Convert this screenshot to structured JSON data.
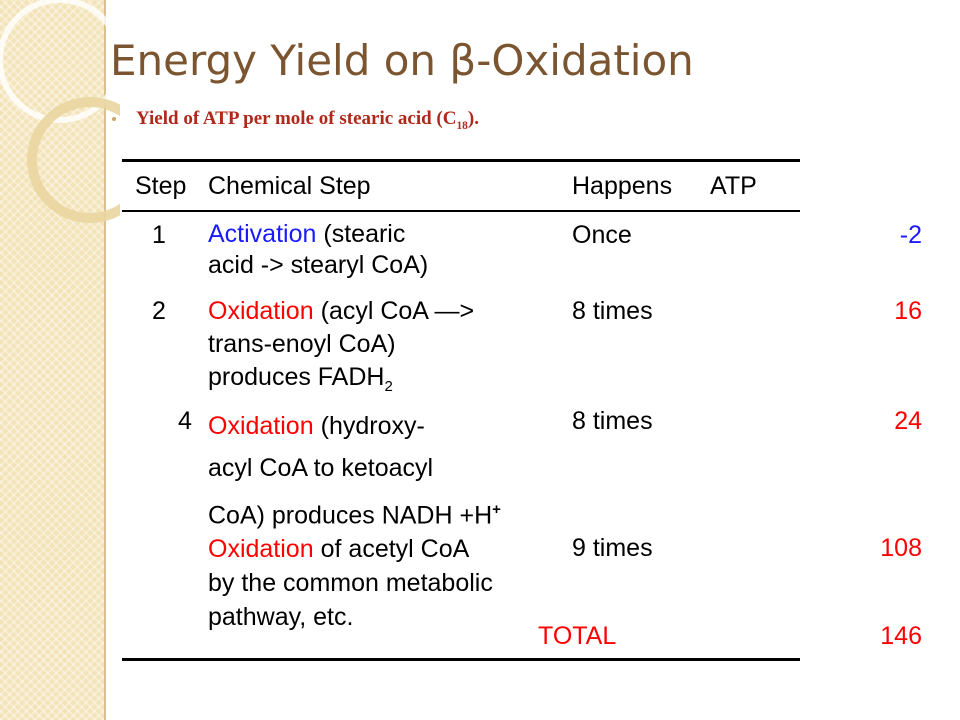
{
  "header": {
    "title": "Energy Yield on β-Oxidation",
    "subtitle": {
      "text": "Yield of ATP per mole of stearic acid (C",
      "subscript": "18",
      "end": ")."
    }
  },
  "table": {
    "columns": [
      "Step",
      "Chemical Step",
      "Happens",
      "ATP"
    ],
    "rows": [
      {
        "step": "1",
        "keyword": "Activation",
        "keyword_color": "#1a1aff",
        "lines": [
          "(stearic",
          "acid -> stearyl CoA)"
        ],
        "happens": "Once",
        "atp": -2,
        "atp_color": "#1a1aff"
      },
      {
        "step": "2",
        "keyword": "Oxidation",
        "keyword_color": "#ff0000",
        "lines": [
          "(acyl CoA —>",
          "trans-enoyl CoA)",
          "produces FADH"
        ],
        "subscript": "2",
        "happens": "8 times",
        "atp": 16,
        "atp_color": "#ff0000"
      },
      {
        "step": "4",
        "keyword": "Oxidation",
        "keyword_color": "#ff0000",
        "lines": [
          "(hydroxy-",
          "acyl CoA to ketoacyl",
          "CoA) produces NADH +H"
        ],
        "superscript": "+",
        "happens": "8 times",
        "atp": 24,
        "atp_color": "#ff0000"
      },
      {
        "keyword": "Oxidation",
        "keyword_color": "#ff0000",
        "lines": [
          "of acetyl CoA",
          "by the common metabolic",
          "pathway, etc."
        ],
        "happens": "9 times",
        "atp": 108,
        "atp_color": "#ff0000"
      }
    ],
    "total": {
      "label": "TOTAL",
      "atp": 146,
      "color": "#ff0000"
    }
  }
}
